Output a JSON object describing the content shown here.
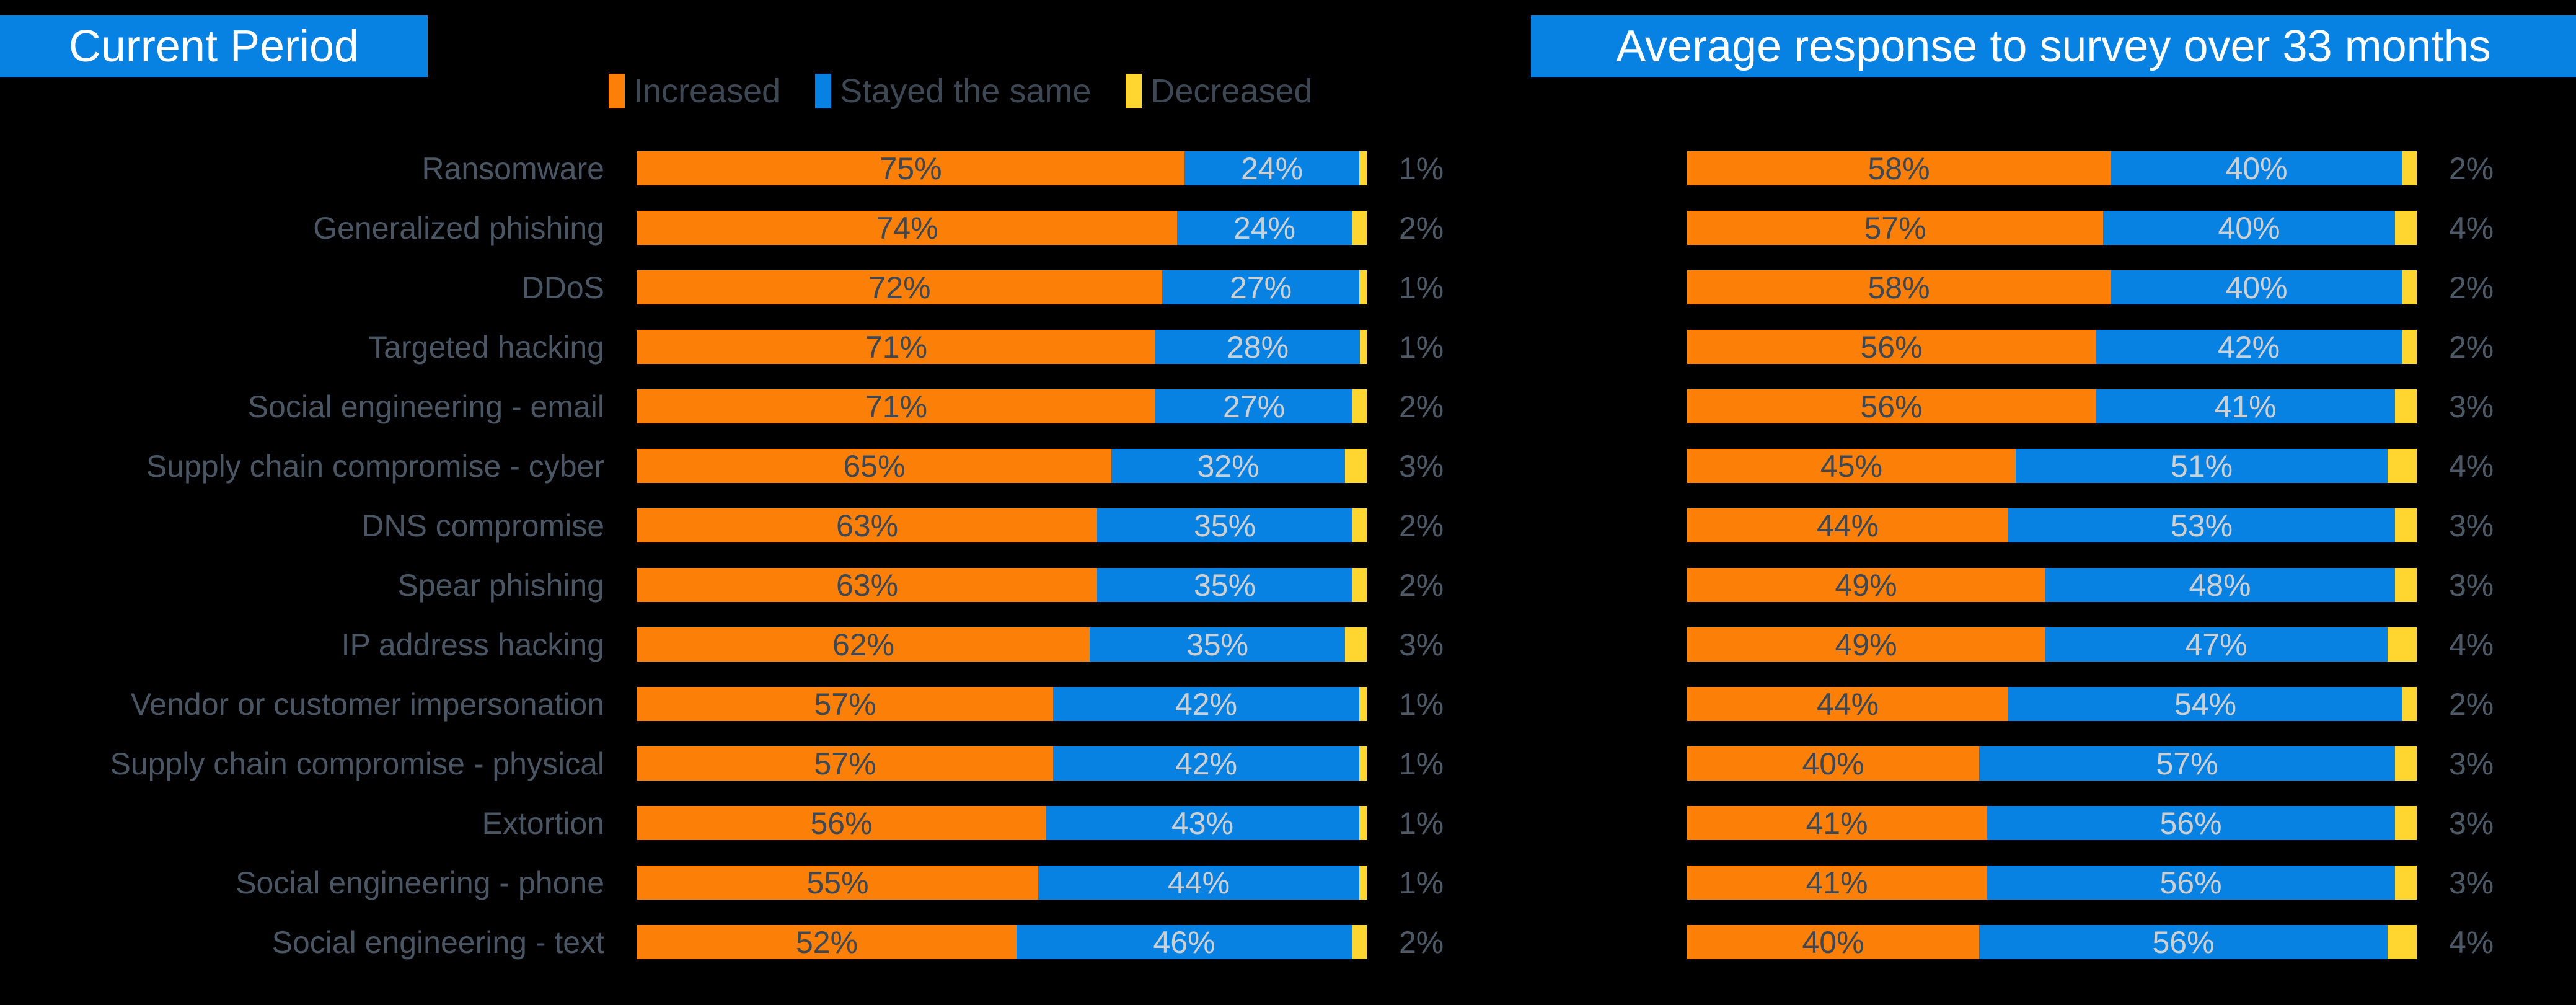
{
  "page": {
    "background": "#000000"
  },
  "titles": {
    "left": "Current Period",
    "right": "Average response to survey over 33 months",
    "badge_bg": "#0882e2",
    "badge_text_color": "#ffffff"
  },
  "legend": {
    "items": [
      {
        "label": "Increased",
        "color": "#fc8008"
      },
      {
        "label": "Stayed the same",
        "color": "#0882e2"
      },
      {
        "label": "Decreased",
        "color": "#ffd52f"
      }
    ],
    "text_color": "#3d4854"
  },
  "colors": {
    "category_label": "#4b5664",
    "value_in_orange": "#3d4854",
    "value_in_blue": "#cdd0d2",
    "value_outside": "#4d5966"
  },
  "chart_data": [
    {
      "type": "bar",
      "orientation": "horizontal-stacked",
      "title": "Current Period",
      "unit": "%",
      "xlim": [
        0,
        100
      ],
      "categories": [
        "Ransomware",
        "Generalized phishing",
        "DDoS",
        "Targeted hacking",
        "Social engineering - email",
        "Supply chain compromise - cyber",
        "DNS compromise",
        "Spear phishing",
        "IP address hacking",
        "Vendor or customer impersonation",
        "Supply chain compromise - physical",
        "Extortion",
        "Social engineering - phone",
        "Social engineering - text"
      ],
      "series": [
        {
          "name": "Increased",
          "color": "#fc8008",
          "values": [
            75,
            74,
            72,
            71,
            71,
            65,
            63,
            63,
            62,
            57,
            57,
            56,
            55,
            52
          ]
        },
        {
          "name": "Stayed the same",
          "color": "#0882e2",
          "values": [
            24,
            24,
            27,
            28,
            27,
            32,
            35,
            35,
            35,
            42,
            42,
            43,
            44,
            46
          ]
        },
        {
          "name": "Decreased",
          "color": "#ffd52f",
          "values": [
            1,
            2,
            1,
            1,
            2,
            3,
            2,
            2,
            3,
            1,
            1,
            1,
            1,
            2
          ]
        }
      ]
    },
    {
      "type": "bar",
      "orientation": "horizontal-stacked",
      "title": "Average response to survey over 33 months",
      "unit": "%",
      "xlim": [
        0,
        100
      ],
      "categories": [
        "Ransomware",
        "Generalized phishing",
        "DDoS",
        "Targeted hacking",
        "Social engineering - email",
        "Supply chain compromise - cyber",
        "DNS compromise",
        "Spear phishing",
        "IP address hacking",
        "Vendor or customer impersonation",
        "Supply chain compromise - physical",
        "Extortion",
        "Social engineering - phone",
        "Social engineering - text"
      ],
      "series": [
        {
          "name": "Increased",
          "color": "#fc8008",
          "values": [
            58,
            57,
            58,
            56,
            56,
            45,
            44,
            49,
            49,
            44,
            40,
            41,
            41,
            40
          ]
        },
        {
          "name": "Stayed the same",
          "color": "#0882e2",
          "values": [
            40,
            40,
            40,
            42,
            41,
            51,
            53,
            48,
            47,
            54,
            57,
            56,
            56,
            56
          ]
        },
        {
          "name": "Decreased",
          "color": "#ffd52f",
          "values": [
            2,
            4,
            2,
            2,
            3,
            4,
            3,
            3,
            4,
            2,
            3,
            3,
            3,
            4
          ]
        }
      ]
    }
  ]
}
